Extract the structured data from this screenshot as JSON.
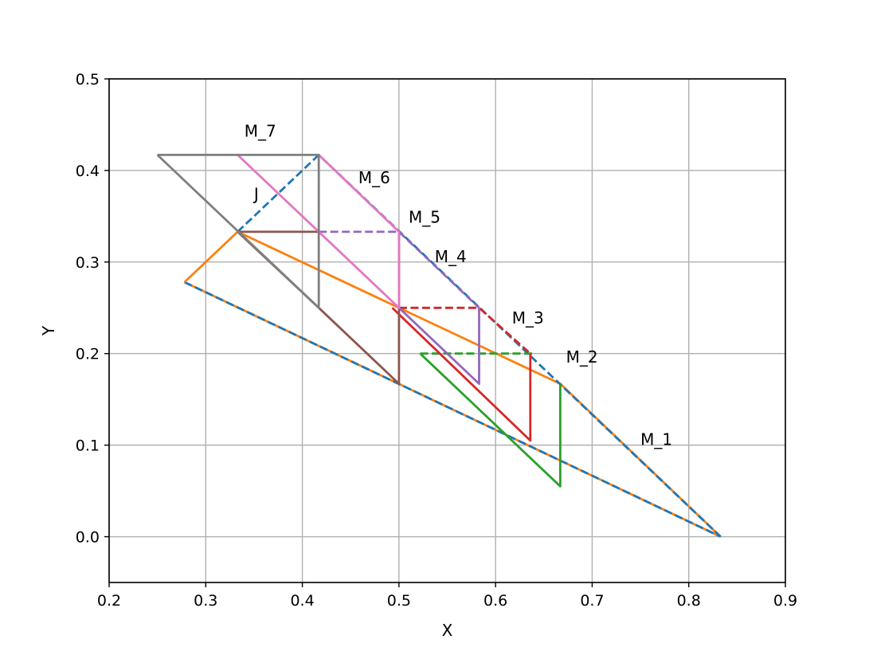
{
  "chart_data": {
    "type": "line",
    "title": "",
    "xlabel": "X",
    "ylabel": "Y",
    "xlim": [
      0.2,
      0.9
    ],
    "ylim": [
      -0.05,
      0.5
    ],
    "grid": true,
    "x_ticks": [
      {
        "value": 0.2,
        "label": "0.2"
      },
      {
        "value": 0.3,
        "label": "0.3"
      },
      {
        "value": 0.4,
        "label": "0.4"
      },
      {
        "value": 0.5,
        "label": "0.5"
      },
      {
        "value": 0.6,
        "label": "0.6"
      },
      {
        "value": 0.7,
        "label": "0.7"
      },
      {
        "value": 0.8,
        "label": "0.8"
      },
      {
        "value": 0.9,
        "label": "0.9"
      }
    ],
    "y_ticks": [
      {
        "value": 0.0,
        "label": "0.0"
      },
      {
        "value": 0.1,
        "label": "0.1"
      },
      {
        "value": 0.2,
        "label": "0.2"
      },
      {
        "value": 0.3,
        "label": "0.3"
      },
      {
        "value": 0.4,
        "label": "0.4"
      },
      {
        "value": 0.5,
        "label": "0.5"
      }
    ],
    "series": [
      {
        "color": "#ff7f0e",
        "style": "solid",
        "points": [
          [
            0.278,
            0.278
          ],
          [
            0.833,
            0.0
          ]
        ]
      },
      {
        "color": "#1f77b4",
        "style": "dashed",
        "points": [
          [
            0.278,
            0.278
          ],
          [
            0.833,
            0.0
          ]
        ]
      },
      {
        "color": "#ff7f0e",
        "style": "solid",
        "points": [
          [
            0.278,
            0.278
          ],
          [
            0.333,
            0.333
          ],
          [
            0.667,
            0.167
          ],
          [
            0.833,
            0.0
          ]
        ]
      },
      {
        "color": "#1f77b4",
        "style": "dashed",
        "points": [
          [
            0.333,
            0.333
          ],
          [
            0.417,
            0.417
          ],
          [
            0.833,
            0.0
          ]
        ]
      },
      {
        "color": "#2ca02c",
        "style": "solid",
        "points": [
          [
            0.522,
            0.2
          ],
          [
            0.667,
            0.055
          ],
          [
            0.667,
            0.167
          ]
        ]
      },
      {
        "color": "#2ca02c",
        "style": "dashed",
        "points": [
          [
            0.522,
            0.2
          ],
          [
            0.64,
            0.2
          ]
        ]
      },
      {
        "color": "#d62728",
        "style": "solid",
        "points": [
          [
            0.493,
            0.25
          ],
          [
            0.636,
            0.105
          ],
          [
            0.636,
            0.2
          ]
        ]
      },
      {
        "color": "#d62728",
        "style": "dashed",
        "points": [
          [
            0.5,
            0.25
          ],
          [
            0.583,
            0.25
          ],
          [
            0.636,
            0.2
          ]
        ]
      },
      {
        "color": "#9467bd",
        "style": "solid",
        "points": [
          [
            0.5,
            0.25
          ],
          [
            0.583,
            0.167
          ],
          [
            0.583,
            0.25
          ]
        ]
      },
      {
        "color": "#9467bd",
        "style": "dashed",
        "points": [
          [
            0.417,
            0.333
          ],
          [
            0.5,
            0.333
          ],
          [
            0.583,
            0.25
          ]
        ]
      },
      {
        "color": "#8c564b",
        "style": "solid",
        "points": [
          [
            0.333,
            0.333
          ],
          [
            0.417,
            0.25
          ],
          [
            0.5,
            0.167
          ],
          [
            0.5,
            0.333
          ]
        ]
      },
      {
        "color": "#8c564b",
        "style": "solid",
        "points": [
          [
            0.333,
            0.333
          ],
          [
            0.417,
            0.333
          ]
        ]
      },
      {
        "color": "#e377c2",
        "style": "solid",
        "points": [
          [
            0.333,
            0.417
          ],
          [
            0.5,
            0.25
          ],
          [
            0.5,
            0.333
          ],
          [
            0.417,
            0.417
          ]
        ]
      },
      {
        "color": "#7f7f7f",
        "style": "solid",
        "points": [
          [
            0.25,
            0.417
          ],
          [
            0.417,
            0.25
          ],
          [
            0.417,
            0.417
          ],
          [
            0.25,
            0.417
          ]
        ]
      }
    ],
    "annotations": [
      {
        "text": "M_1",
        "x": 0.75,
        "y": 0.1
      },
      {
        "text": "M_2",
        "x": 0.673,
        "y": 0.19
      },
      {
        "text": "M_3",
        "x": 0.617,
        "y": 0.233
      },
      {
        "text": "M_4",
        "x": 0.537,
        "y": 0.3
      },
      {
        "text": "M_5",
        "x": 0.51,
        "y": 0.343
      },
      {
        "text": "M_6",
        "x": 0.458,
        "y": 0.386
      },
      {
        "text": "M_7",
        "x": 0.34,
        "y": 0.437
      },
      {
        "text": "J",
        "x": 0.35,
        "y": 0.368
      }
    ]
  }
}
